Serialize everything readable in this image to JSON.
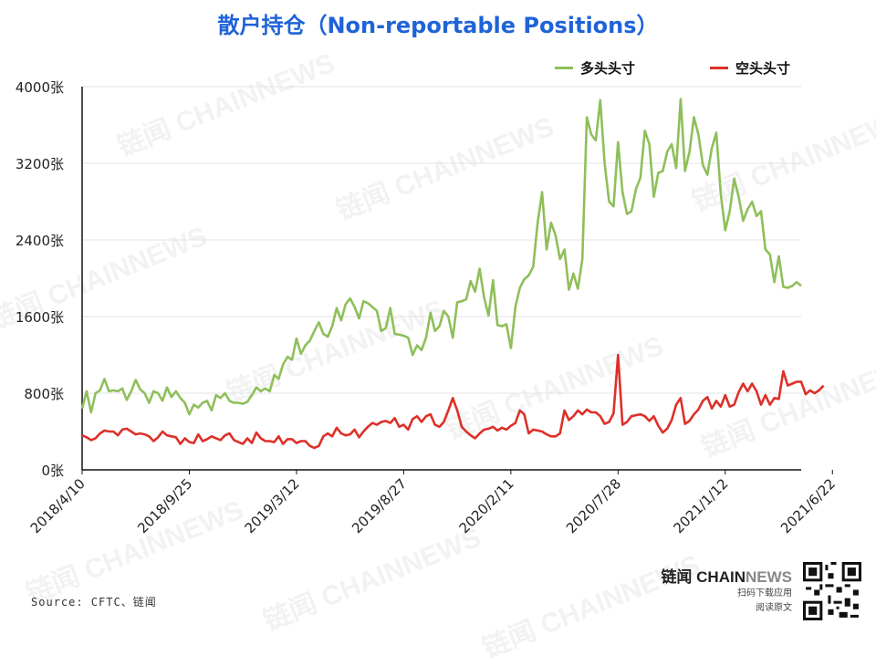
{
  "title": "散户持仓（Non-reportable Positions）",
  "legend": {
    "long_label": "多头头寸",
    "short_label": "空头头寸"
  },
  "source": "Source: CFTC、链闻",
  "brand": {
    "name_part1": "链闻 CHAIN",
    "name_part2": "NEWS",
    "line1": "扫码下载应用",
    "line2": "阅读原文"
  },
  "watermark_text": "链闻 CHAINNEWS",
  "colors": {
    "title": "#1f63d8",
    "long": "#8fbf5a",
    "short": "#dd3029",
    "grid": "#e3e3e3"
  },
  "chart_data": {
    "type": "line",
    "title": "散户持仓（Non-reportable Positions）",
    "xlabel": "",
    "ylabel": "",
    "ylim": [
      0,
      4000
    ],
    "yticks": [
      "0张",
      "800张",
      "1600张",
      "2400张",
      "3200张",
      "4000张"
    ],
    "ytick_values": [
      0,
      800,
      1600,
      2400,
      3200,
      4000
    ],
    "xtick_labels": [
      "2018/4/10",
      "2018/9/25",
      "2019/3/12",
      "2019/8/27",
      "2020/2/11",
      "2020/7/28",
      "2021/1/12",
      "2021/6/22"
    ],
    "xtick_index": [
      0,
      24,
      48,
      72,
      96,
      120,
      144,
      168
    ],
    "grid": true,
    "legend_position": "top-right",
    "series": [
      {
        "name": "多头头寸",
        "color": "#8fbf5a",
        "values": [
          640,
          820,
          600,
          800,
          830,
          950,
          820,
          830,
          820,
          850,
          730,
          820,
          940,
          840,
          800,
          700,
          820,
          800,
          720,
          860,
          760,
          820,
          750,
          700,
          580,
          680,
          650,
          700,
          720,
          620,
          780,
          750,
          800,
          720,
          700,
          700,
          690,
          710,
          780,
          860,
          820,
          850,
          820,
          990,
          950,
          1100,
          1180,
          1150,
          1370,
          1210,
          1300,
          1350,
          1450,
          1540,
          1420,
          1390,
          1500,
          1690,
          1560,
          1730,
          1790,
          1700,
          1580,
          1760,
          1740,
          1700,
          1660,
          1450,
          1480,
          1690,
          1420,
          1410,
          1400,
          1380,
          1200,
          1300,
          1250,
          1380,
          1640,
          1450,
          1500,
          1660,
          1600,
          1380,
          1750,
          1760,
          1780,
          1970,
          1860,
          2100,
          1800,
          1610,
          1980,
          1510,
          1500,
          1520,
          1270,
          1700,
          1900,
          1990,
          2030,
          2120,
          2580,
          2900,
          2300,
          2580,
          2450,
          2200,
          2300,
          1880,
          2050,
          1890,
          2200,
          3680,
          3500,
          3440,
          3860,
          3200,
          2800,
          2750,
          3420,
          2900,
          2670,
          2700,
          2930,
          3050,
          3540,
          3400,
          2850,
          3100,
          3120,
          3320,
          3400,
          3150,
          3870,
          3120,
          3320,
          3680,
          3500,
          3180,
          3080,
          3360,
          3520,
          2880,
          2500,
          2700,
          3040,
          2850,
          2600,
          2720,
          2800,
          2650,
          2700,
          2300,
          2250,
          1960,
          2230,
          1910,
          1900,
          1920,
          1960,
          1920
        ]
      },
      {
        "name": "空头头寸",
        "color": "#dd3029",
        "values": [
          360,
          340,
          310,
          330,
          380,
          410,
          400,
          400,
          360,
          420,
          430,
          400,
          370,
          380,
          370,
          350,
          300,
          340,
          400,
          360,
          350,
          340,
          270,
          330,
          290,
          280,
          370,
          300,
          320,
          350,
          330,
          310,
          360,
          380,
          310,
          290,
          270,
          330,
          280,
          390,
          330,
          300,
          300,
          290,
          350,
          270,
          320,
          320,
          280,
          300,
          300,
          250,
          230,
          250,
          350,
          380,
          350,
          440,
          380,
          360,
          370,
          420,
          340,
          400,
          450,
          490,
          470,
          500,
          510,
          490,
          540,
          450,
          470,
          420,
          530,
          560,
          500,
          560,
          580,
          470,
          450,
          500,
          620,
          750,
          620,
          450,
          400,
          360,
          330,
          380,
          420,
          430,
          450,
          410,
          440,
          420,
          460,
          490,
          620,
          580,
          380,
          420,
          410,
          400,
          370,
          350,
          350,
          380,
          620,
          520,
          560,
          620,
          580,
          630,
          600,
          600,
          560,
          480,
          500,
          590,
          1200,
          470,
          500,
          560,
          570,
          580,
          560,
          510,
          560,
          460,
          390,
          430,
          520,
          680,
          750,
          480,
          510,
          580,
          630,
          720,
          760,
          640,
          720,
          660,
          780,
          660,
          680,
          810,
          900,
          820,
          900,
          820,
          680,
          780,
          680,
          750,
          740,
          1030,
          880,
          900,
          920,
          920,
          790,
          830,
          800,
          830,
          880
        ]
      }
    ]
  }
}
